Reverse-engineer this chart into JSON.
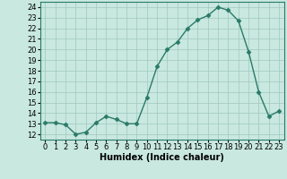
{
  "x": [
    0,
    1,
    2,
    3,
    4,
    5,
    6,
    7,
    8,
    9,
    10,
    11,
    12,
    13,
    14,
    15,
    16,
    17,
    18,
    19,
    20,
    21,
    22,
    23
  ],
  "y": [
    13.1,
    13.1,
    12.9,
    12.0,
    12.2,
    13.1,
    13.7,
    13.4,
    13.0,
    13.0,
    15.5,
    18.4,
    20.0,
    20.7,
    22.0,
    22.8,
    23.2,
    24.0,
    23.7,
    22.7,
    19.8,
    16.0,
    13.7,
    14.2
  ],
  "line_color": "#2a7a68",
  "marker": "D",
  "marker_size": 2.5,
  "bg_color": "#c8e8e0",
  "grid_color": "#a0c8c0",
  "xlabel": "Humidex (Indice chaleur)",
  "ylim": [
    11.5,
    24.5
  ],
  "xlim": [
    -0.5,
    23.5
  ],
  "yticks": [
    12,
    13,
    14,
    15,
    16,
    17,
    18,
    19,
    20,
    21,
    22,
    23,
    24
  ],
  "xticks": [
    0,
    1,
    2,
    3,
    4,
    5,
    6,
    7,
    8,
    9,
    10,
    11,
    12,
    13,
    14,
    15,
    16,
    17,
    18,
    19,
    20,
    21,
    22,
    23
  ],
  "xlabel_fontsize": 7,
  "tick_fontsize": 6,
  "line_width": 1.0
}
